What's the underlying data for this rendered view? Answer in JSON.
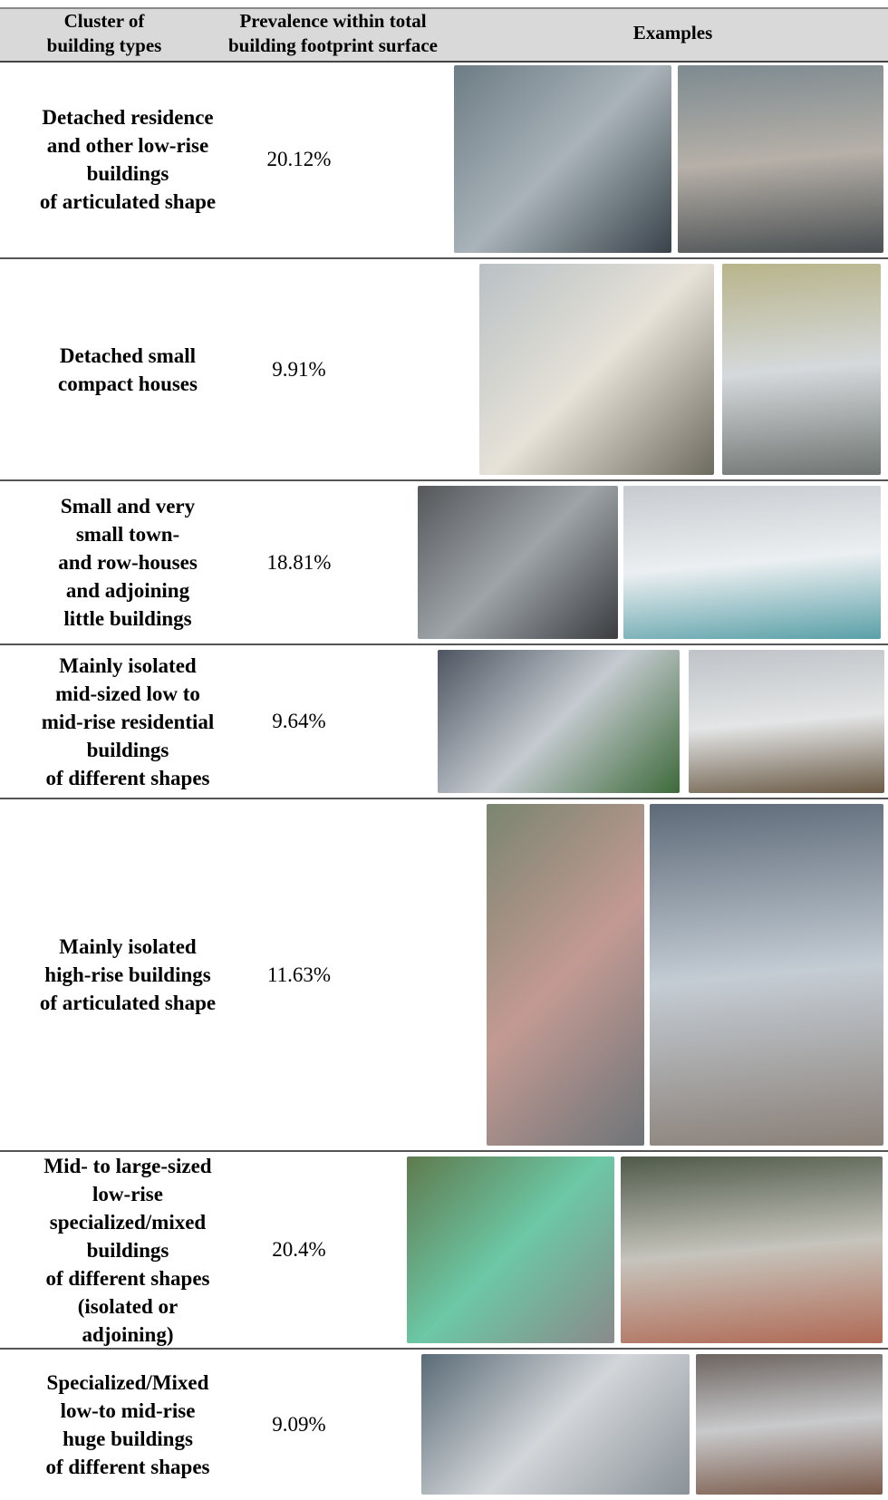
{
  "table": {
    "header": [
      "Cluster of\nbuilding types",
      "Prevalence within total\nbuilding footprint surface",
      "Examples"
    ],
    "rows": [
      [
        "Detached residence\nand other low-rise\nbuildings\nof articulated shape",
        "20.12%"
      ],
      [
        "Detached small\ncompact houses",
        "9.91%"
      ],
      [
        "Small and very\nsmall town-\nand row-houses\nand adjoining\nlittle buildings",
        "18.81%"
      ],
      [
        "Mainly isolated\nmid-sized low to\nmid-rise residential\nbuildings\nof different shapes",
        "9.64%"
      ],
      [
        "Mainly isolated\nhigh-rise buildings\nof articulated shape",
        "11.63%"
      ],
      [
        "Mid- to large-sized\nlow-rise\nspecialized/mixed\nbuildings\nof different shapes\n(isolated or\nadjoining)",
        "20.4%"
      ],
      [
        "Specialized/Mixed\nlow-to mid-rise\nhuge buildings\nof different shapes",
        "9.09%"
      ]
    ]
  }
}
